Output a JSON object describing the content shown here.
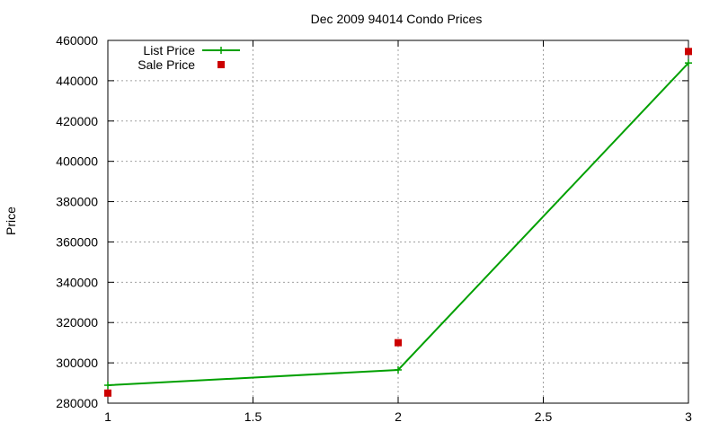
{
  "chart_data": {
    "type": "line",
    "title": "Dec 2009 94014 Condo Prices",
    "xlabel": "",
    "ylabel": "Price",
    "xlim": [
      1,
      3
    ],
    "ylim": [
      280000,
      460000
    ],
    "x_ticks": [
      1,
      1.5,
      2,
      2.5,
      3
    ],
    "x_tick_labels": [
      "1",
      "1.5",
      "2",
      "2.5",
      "3"
    ],
    "y_ticks": [
      280000,
      300000,
      320000,
      340000,
      360000,
      380000,
      400000,
      420000,
      440000,
      460000
    ],
    "y_tick_labels": [
      "280000",
      "300000",
      "320000",
      "340000",
      "360000",
      "380000",
      "400000",
      "420000",
      "440000",
      "460000"
    ],
    "grid": true,
    "legend_position": "top-left",
    "series": [
      {
        "name": "List Price",
        "style": "line-with-plus-markers",
        "color": "#00a000",
        "x": [
          1,
          2,
          3
        ],
        "y": [
          288900,
          296500,
          448800
        ]
      },
      {
        "name": "Sale Price",
        "style": "square-markers",
        "color": "#cc0000",
        "x": [
          1,
          2,
          3
        ],
        "y": [
          285000,
          310000,
          454500
        ]
      }
    ]
  }
}
